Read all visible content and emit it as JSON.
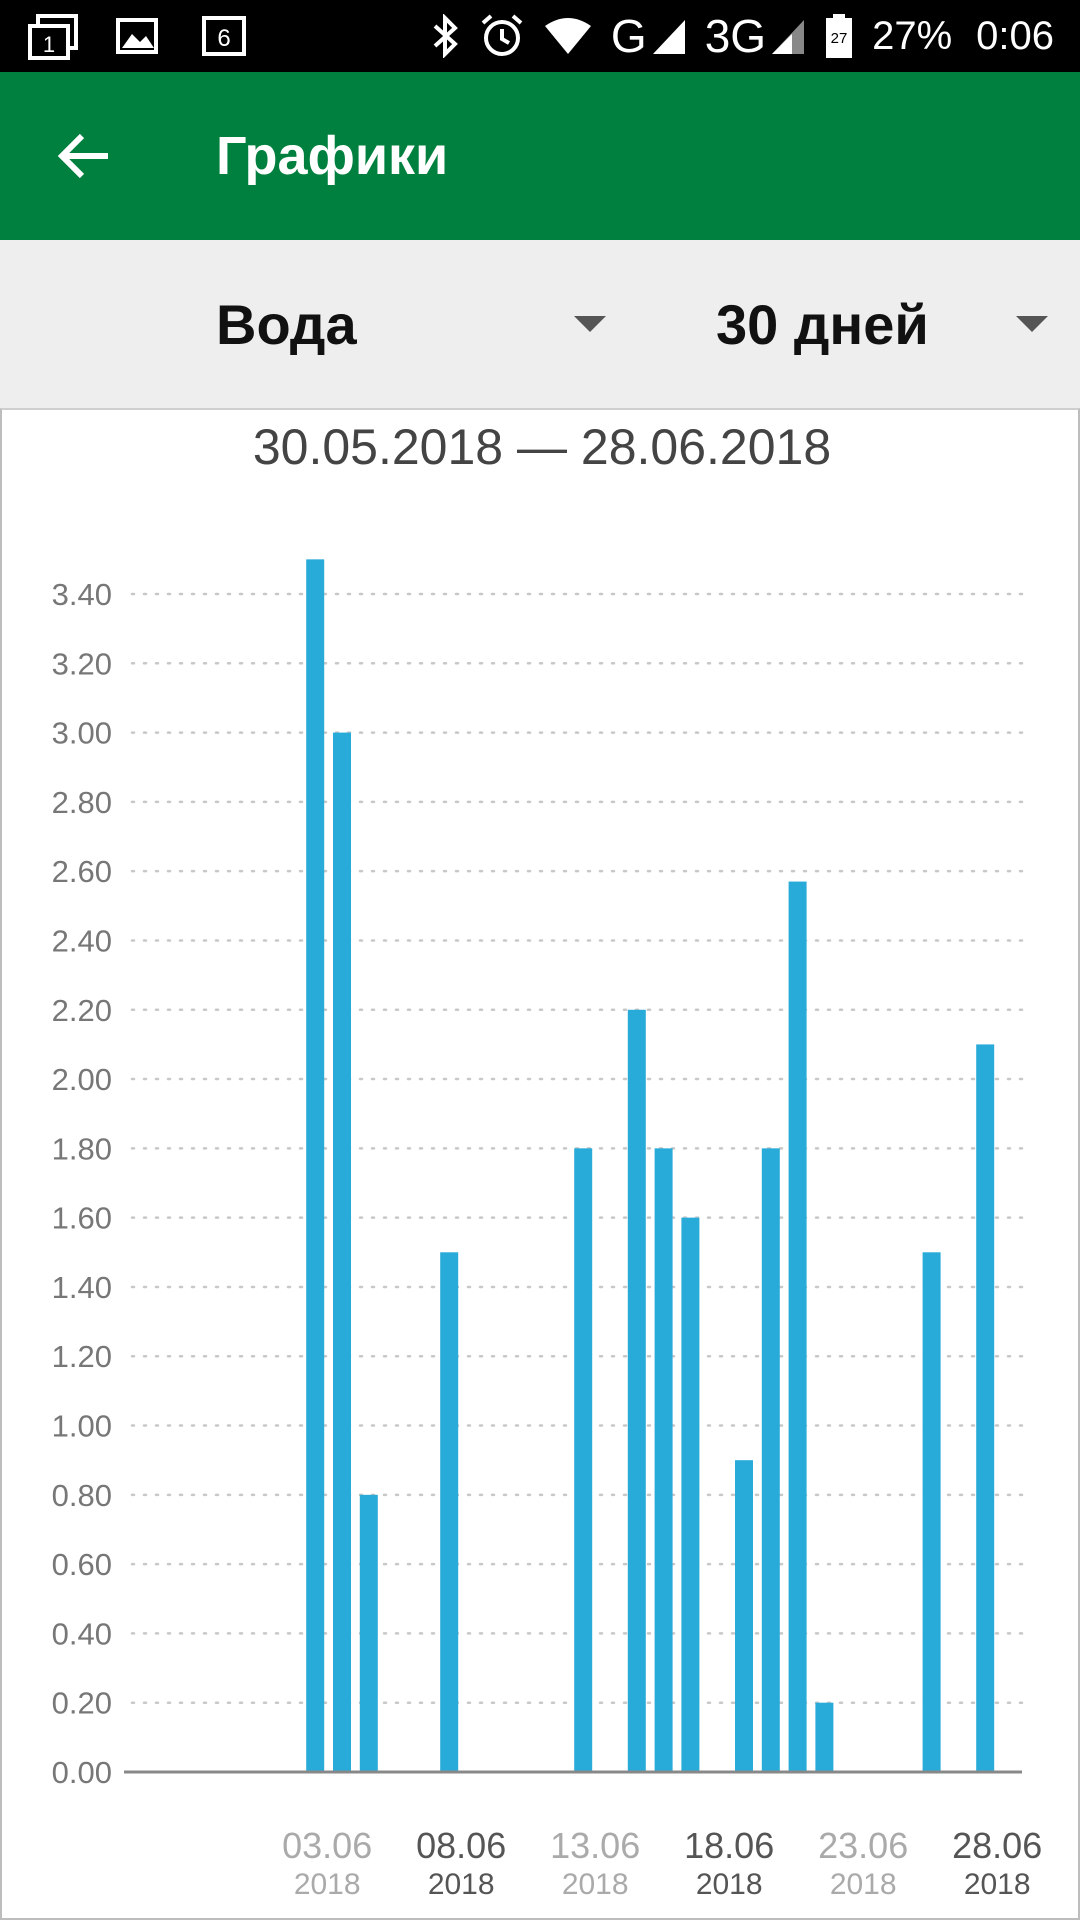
{
  "status_bar": {
    "notif_icons": [
      "tab-count-icon",
      "image-icon",
      "six-box-icon"
    ],
    "notif_badge_1": "1",
    "notif_badge_3": "6",
    "network_g": "G",
    "network_3g": "3G",
    "battery_level_label": "27",
    "battery_percent": "27%",
    "time": "0:06"
  },
  "app_bar": {
    "title": "Графики",
    "color": "#00803f"
  },
  "selectors": {
    "metric": "Вода",
    "period": "30 дней"
  },
  "chart_header": {
    "date_range": "30.05.2018 — 28.06.2018"
  },
  "chart_data": {
    "type": "bar",
    "bar_color": "#29abd9",
    "y_ticks": [
      "0.00",
      "0.20",
      "0.40",
      "0.60",
      "0.80",
      "1.00",
      "1.20",
      "1.40",
      "1.60",
      "1.80",
      "2.00",
      "2.20",
      "2.40",
      "2.60",
      "2.80",
      "3.00",
      "3.20",
      "3.40"
    ],
    "ylim": [
      0,
      3.5
    ],
    "x_ticks": [
      {
        "day": "03.06",
        "year": "2018",
        "muted": true
      },
      {
        "day": "08.06",
        "year": "2018",
        "muted": false
      },
      {
        "day": "13.06",
        "year": "2018",
        "muted": true
      },
      {
        "day": "18.06",
        "year": "2018",
        "muted": false
      },
      {
        "day": "23.06",
        "year": "2018",
        "muted": true
      },
      {
        "day": "28.06",
        "year": "2018",
        "muted": false
      }
    ],
    "days": [
      "30.05",
      "31.05",
      "01.06",
      "02.06",
      "03.06",
      "04.06",
      "05.06",
      "06.06",
      "07.06",
      "08.06",
      "09.06",
      "10.06",
      "11.06",
      "12.06",
      "13.06",
      "14.06",
      "15.06",
      "16.06",
      "17.06",
      "18.06",
      "19.06",
      "20.06",
      "21.06",
      "22.06",
      "23.06",
      "24.06",
      "25.06",
      "26.06",
      "27.06",
      "28.06"
    ],
    "values": [
      0,
      0,
      0,
      0,
      3.5,
      3.0,
      0.8,
      0,
      0,
      1.5,
      0,
      0,
      0,
      0,
      1.8,
      0,
      2.2,
      1.8,
      1.6,
      0,
      0.9,
      1.8,
      2.57,
      0.2,
      0,
      0,
      0,
      1.5,
      0,
      2.1
    ]
  }
}
